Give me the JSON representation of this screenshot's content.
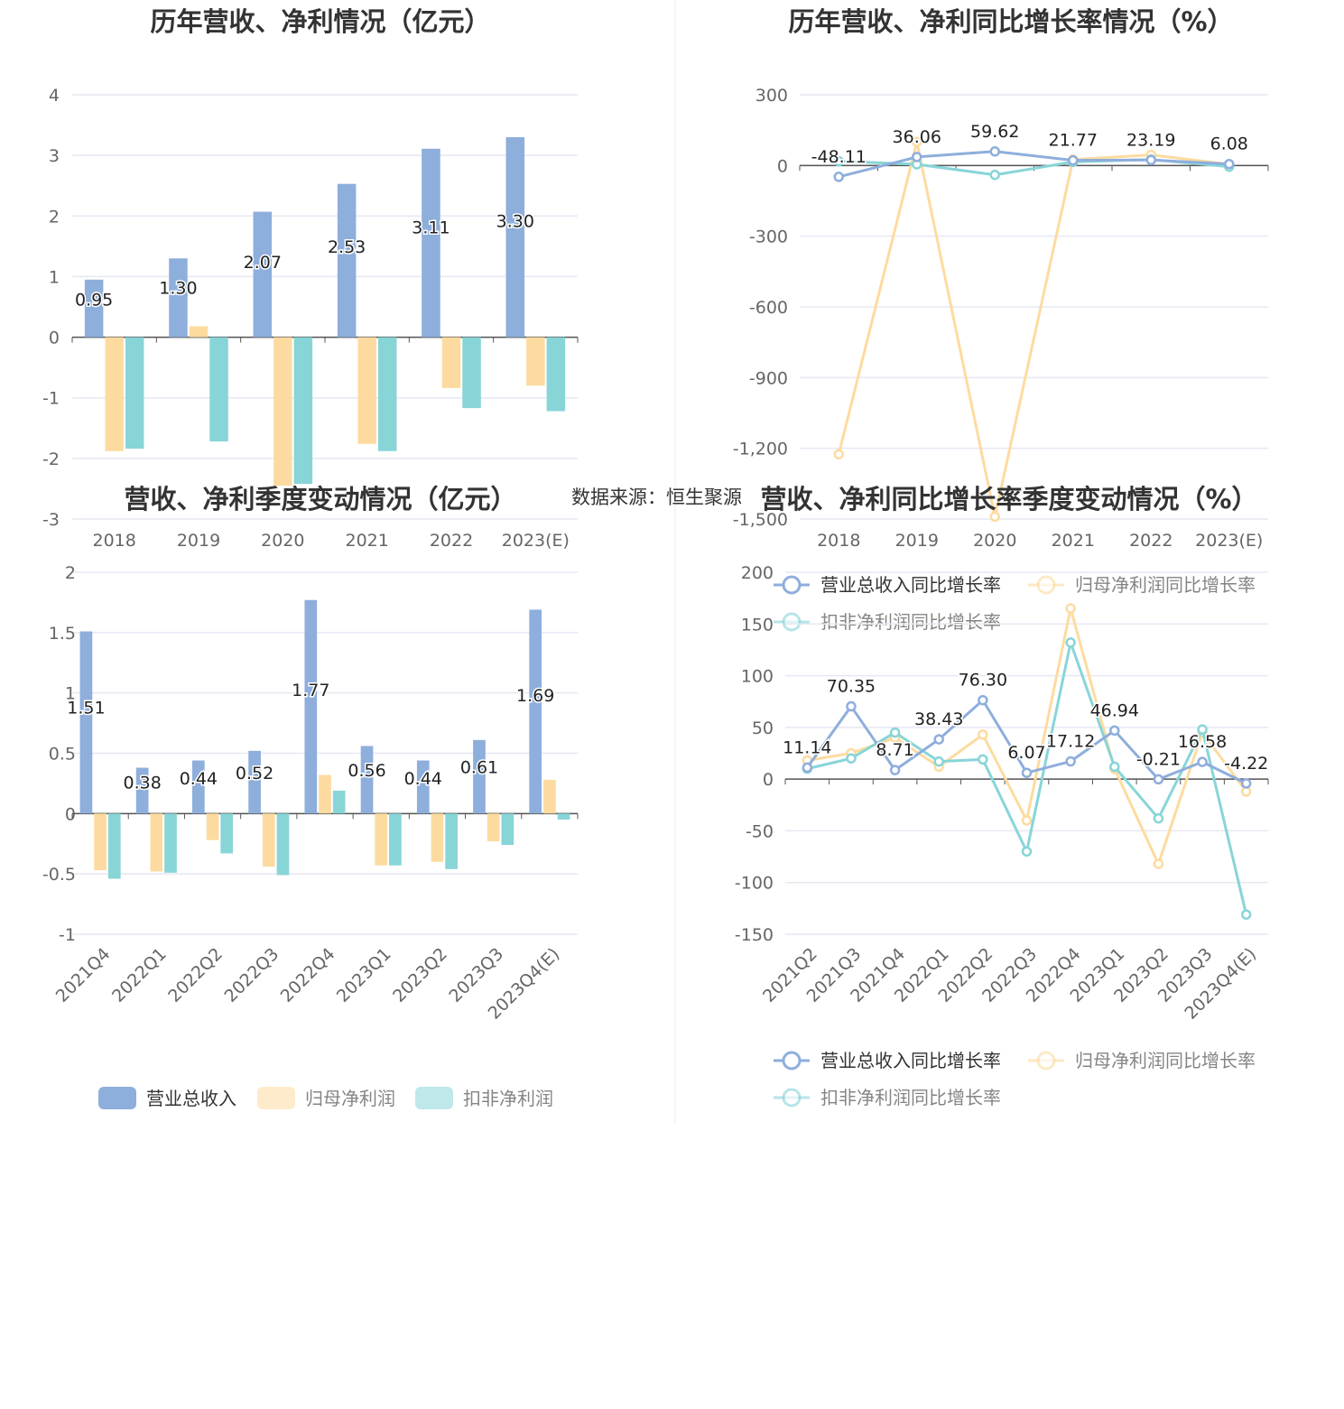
{
  "source_text": "数据来源：恒生聚源",
  "colors": {
    "revenue": "#8eaedc",
    "net_profit": "#fddba0",
    "deducted_profit": "#88d5d8",
    "grid": "#e6e8f2",
    "axis": "#555555"
  },
  "chart_data": [
    {
      "id": "annual-amount",
      "type": "bar",
      "title": "历年营收、净利情况（亿元）",
      "categories": [
        "2018",
        "2019",
        "2020",
        "2021",
        "2022",
        "2023(E)"
      ],
      "series": [
        {
          "name": "营业总收入",
          "values": [
            0.95,
            1.3,
            2.07,
            2.53,
            3.11,
            3.3
          ],
          "labels": [
            "0.95",
            "1.30",
            "2.07",
            "2.53",
            "3.11",
            "3.30"
          ]
        },
        {
          "name": "归母净利润",
          "values": [
            -1.88,
            0.18,
            -2.45,
            -1.76,
            -0.84,
            -0.8
          ]
        },
        {
          "name": "扣非净利润",
          "values": [
            -1.84,
            -1.72,
            -2.42,
            -1.88,
            -1.17,
            -1.22
          ]
        }
      ],
      "yticks": [
        "4",
        "3",
        "2",
        "1",
        "0",
        "-1",
        "-2",
        "-3"
      ],
      "ylim": [
        -3,
        4
      ],
      "grid": true,
      "legend": "bottom"
    },
    {
      "id": "annual-growth",
      "type": "line",
      "title": "历年营收、净利同比增长率情况（%）",
      "categories": [
        "2018",
        "2019",
        "2020",
        "2021",
        "2022",
        "2023(E)"
      ],
      "series": [
        {
          "name": "营业总收入同比增长率",
          "values": [
            -48.11,
            36.06,
            59.62,
            21.77,
            23.19,
            6.08
          ],
          "labels": [
            "-48.11",
            "36.06",
            "59.62",
            "21.77",
            "23.19",
            "6.08"
          ]
        },
        {
          "name": "归母净利润同比增长率",
          "values": [
            -1225,
            100,
            -1490,
            25,
            45,
            5
          ]
        },
        {
          "name": "扣非净利润同比增长率",
          "values": [
            18,
            5,
            -40,
            15,
            25,
            -5
          ]
        }
      ],
      "yticks": [
        "300",
        "0",
        "-300",
        "-600",
        "-900",
        "-1,200",
        "-1,500"
      ],
      "ylim": [
        -1500,
        300
      ],
      "grid": true,
      "legend": "top"
    },
    {
      "id": "quarter-amount",
      "type": "bar",
      "title": "营收、净利季度变动情况（亿元）",
      "categories": [
        "2021Q4",
        "2022Q1",
        "2022Q2",
        "2022Q3",
        "2022Q4",
        "2023Q1",
        "2023Q2",
        "2023Q3",
        "2023Q4(E)"
      ],
      "series": [
        {
          "name": "营业总收入",
          "values": [
            1.51,
            0.38,
            0.44,
            0.52,
            1.77,
            0.56,
            0.44,
            0.61,
            1.69
          ],
          "labels": [
            "1.51",
            "0.38",
            "0.44",
            "0.52",
            "1.77",
            "0.56",
            "0.44",
            "0.61",
            "1.69"
          ]
        },
        {
          "name": "归母净利润",
          "values": [
            -0.47,
            -0.48,
            -0.22,
            -0.44,
            0.32,
            -0.43,
            -0.4,
            -0.23,
            0.28
          ]
        },
        {
          "name": "扣非净利润",
          "values": [
            -0.54,
            -0.49,
            -0.33,
            -0.51,
            0.19,
            -0.43,
            -0.46,
            -0.26,
            -0.05
          ]
        }
      ],
      "yticks": [
        "2",
        "1.5",
        "1",
        "0.5",
        "0",
        "-0.5",
        "-1"
      ],
      "ylim": [
        -1,
        2
      ],
      "grid": true,
      "legend": "bottom"
    },
    {
      "id": "quarter-growth",
      "type": "line",
      "title": "营收、净利同比增长率季度变动情况（%）",
      "categories": [
        "2021Q2",
        "2021Q3",
        "2021Q4",
        "2022Q1",
        "2022Q2",
        "2022Q3",
        "2022Q4",
        "2023Q1",
        "2023Q2",
        "2023Q3",
        "2023Q4(E)"
      ],
      "series": [
        {
          "name": "营业总收入同比增长率",
          "values": [
            11.14,
            70.35,
            8.71,
            38.43,
            76.3,
            6.07,
            17.12,
            46.94,
            -0.21,
            16.58,
            -4.22
          ],
          "labels": [
            "11.14",
            "70.35",
            "8.71",
            "38.43",
            "76.30",
            "6.07",
            "17.12",
            "46.94",
            "-0.21",
            "16.58",
            "-4.22"
          ]
        },
        {
          "name": "归母净利润同比增长率",
          "values": [
            18,
            25,
            40,
            12,
            43,
            -40,
            165,
            10,
            -82,
            45,
            -12
          ]
        },
        {
          "name": "扣非净利润同比增长率",
          "values": [
            10,
            20,
            45,
            17,
            19,
            -70,
            132,
            12,
            -38,
            48,
            -131
          ]
        }
      ],
      "yticks": [
        "200",
        "150",
        "100",
        "50",
        "0",
        "-50",
        "-100",
        "-150"
      ],
      "ylim": [
        -150,
        200
      ],
      "grid": true,
      "legend": "bottom"
    }
  ]
}
